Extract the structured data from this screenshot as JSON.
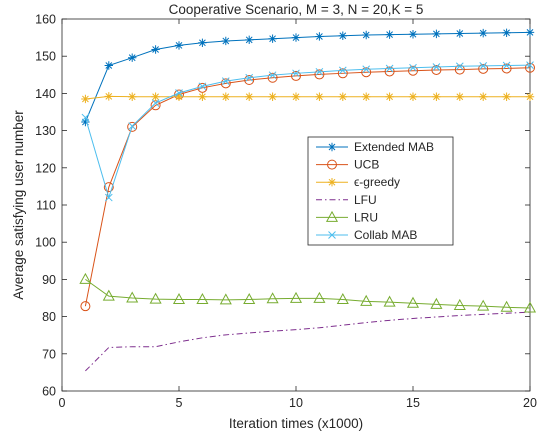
{
  "chart_data": {
    "type": "line",
    "title": "Cooperative Scenario, M = 3, N = 20,K = 5",
    "xlabel": "Iteration times (x1000)",
    "ylabel": "Average satisfying user number",
    "xlim": [
      0,
      20
    ],
    "ylim": [
      60,
      160
    ],
    "xticks": [
      0,
      5,
      10,
      15,
      20
    ],
    "yticks": [
      60,
      70,
      80,
      90,
      100,
      110,
      120,
      130,
      140,
      150,
      160
    ],
    "grid": false,
    "legend_position": "center-right",
    "x": [
      1,
      2,
      3,
      4,
      5,
      6,
      7,
      8,
      9,
      10,
      11,
      12,
      13,
      14,
      15,
      16,
      17,
      18,
      19,
      20
    ],
    "series": [
      {
        "name": "Extended MAB",
        "color": "#0072BD",
        "marker": "asterisk",
        "linestyle": "solid",
        "values": [
          132.3,
          147.5,
          149.6,
          151.8,
          152.9,
          153.6,
          154.1,
          154.4,
          154.7,
          155.0,
          155.3,
          155.5,
          155.7,
          155.8,
          155.9,
          156.0,
          156.1,
          156.2,
          156.3,
          156.4
        ]
      },
      {
        "name": "UCB",
        "color": "#D95319",
        "marker": "circle",
        "linestyle": "solid",
        "values": [
          82.8,
          114.8,
          131.0,
          136.8,
          139.7,
          141.5,
          142.7,
          143.6,
          144.2,
          144.7,
          145.1,
          145.4,
          145.7,
          145.9,
          146.1,
          146.3,
          146.4,
          146.6,
          146.7,
          146.9
        ]
      },
      {
        "name": "ϵ-greedy",
        "color": "#EDB120",
        "marker": "asterisk",
        "linestyle": "solid",
        "values": [
          138.5,
          139.2,
          139.1,
          139.1,
          139.1,
          139.1,
          139.1,
          139.1,
          139.1,
          139.1,
          139.1,
          139.1,
          139.1,
          139.1,
          139.1,
          139.1,
          139.1,
          139.1,
          139.1,
          139.1
        ]
      },
      {
        "name": "LFU",
        "color": "#7E2F8E",
        "marker": "none",
        "linestyle": "dashdot",
        "values": [
          65.4,
          71.7,
          71.9,
          71.9,
          73.2,
          74.3,
          75.1,
          75.6,
          76.1,
          76.5,
          77.0,
          77.7,
          78.4,
          79.0,
          79.5,
          79.9,
          80.3,
          80.6,
          80.9,
          81.2
        ]
      },
      {
        "name": "LRU",
        "color": "#77AC30",
        "marker": "triangle",
        "linestyle": "solid",
        "values": [
          90.0,
          85.5,
          85.0,
          84.7,
          84.6,
          84.6,
          84.5,
          84.6,
          84.8,
          84.9,
          84.9,
          84.6,
          84.1,
          83.9,
          83.6,
          83.3,
          83.0,
          82.8,
          82.5,
          82.3
        ]
      },
      {
        "name": "Collab MAB",
        "color": "#4DBEEE",
        "marker": "x",
        "linestyle": "solid",
        "values": [
          133.5,
          112.0,
          131.2,
          137.4,
          140.1,
          141.9,
          143.3,
          144.2,
          144.9,
          145.4,
          145.8,
          146.2,
          146.5,
          146.7,
          146.9,
          147.1,
          147.3,
          147.4,
          147.5,
          147.6
        ]
      }
    ]
  }
}
